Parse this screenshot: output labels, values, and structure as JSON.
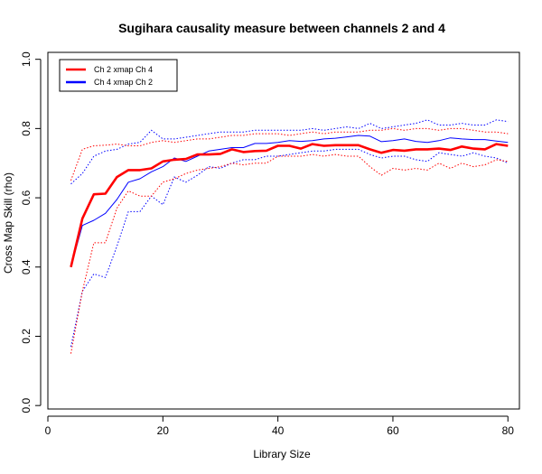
{
  "chart_data": {
    "type": "line",
    "title": "Sugihara causality measure between channels  2 and 4",
    "xlabel": "Library Size",
    "ylabel": "Cross Map Skill (rho)",
    "xlim": [
      0,
      82
    ],
    "ylim": [
      -0.01,
      1.02
    ],
    "xticks": [
      "0",
      "20",
      "40",
      "60",
      "80"
    ],
    "xtick_values": [
      0,
      20,
      40,
      60,
      80
    ],
    "yticks": [
      "0.0",
      "0.2",
      "0.4",
      "0.6",
      "0.8",
      "1.0"
    ],
    "ytick_values": [
      0,
      0.2,
      0.4,
      0.6,
      0.8,
      1.0
    ],
    "grid": false,
    "legend_position": "top-left",
    "x": [
      4,
      6,
      8,
      10,
      12,
      14,
      16,
      18,
      20,
      22,
      24,
      26,
      28,
      30,
      32,
      34,
      36,
      38,
      40,
      42,
      44,
      46,
      48,
      50,
      52,
      54,
      56,
      58,
      60,
      62,
      64,
      66,
      68,
      70,
      72,
      74,
      76,
      78,
      80
    ],
    "series": [
      {
        "name": "Ch 2 xmap Ch 4",
        "color": "#ff0000",
        "values": [
          0.4,
          0.54,
          0.61,
          0.612,
          0.66,
          0.68,
          0.68,
          0.685,
          0.705,
          0.71,
          0.712,
          0.725,
          0.725,
          0.727,
          0.74,
          0.732,
          0.735,
          0.736,
          0.75,
          0.75,
          0.742,
          0.755,
          0.75,
          0.752,
          0.752,
          0.752,
          0.74,
          0.73,
          0.738,
          0.736,
          0.74,
          0.74,
          0.742,
          0.738,
          0.748,
          0.742,
          0.74,
          0.755,
          0.75
        ],
        "upper": [
          0.65,
          0.74,
          0.75,
          0.752,
          0.755,
          0.75,
          0.75,
          0.76,
          0.765,
          0.76,
          0.765,
          0.77,
          0.77,
          0.775,
          0.78,
          0.78,
          0.785,
          0.785,
          0.785,
          0.78,
          0.785,
          0.79,
          0.785,
          0.79,
          0.79,
          0.79,
          0.795,
          0.795,
          0.8,
          0.795,
          0.8,
          0.8,
          0.795,
          0.8,
          0.8,
          0.795,
          0.79,
          0.79,
          0.785
        ],
        "lower": [
          0.15,
          0.33,
          0.47,
          0.47,
          0.57,
          0.62,
          0.605,
          0.605,
          0.645,
          0.655,
          0.67,
          0.68,
          0.685,
          0.69,
          0.7,
          0.695,
          0.7,
          0.7,
          0.72,
          0.72,
          0.72,
          0.725,
          0.72,
          0.725,
          0.72,
          0.72,
          0.69,
          0.665,
          0.685,
          0.68,
          0.685,
          0.68,
          0.7,
          0.685,
          0.7,
          0.69,
          0.695,
          0.71,
          0.705
        ]
      },
      {
        "name": "Ch 4  xmap Ch 2",
        "color": "#0000ff",
        "values": [
          0.4,
          0.52,
          0.535,
          0.555,
          0.595,
          0.645,
          0.655,
          0.675,
          0.69,
          0.715,
          0.705,
          0.72,
          0.735,
          0.74,
          0.745,
          0.745,
          0.757,
          0.757,
          0.76,
          0.765,
          0.763,
          0.765,
          0.77,
          0.772,
          0.776,
          0.78,
          0.778,
          0.762,
          0.765,
          0.77,
          0.763,
          0.76,
          0.765,
          0.773,
          0.77,
          0.768,
          0.768,
          0.764,
          0.76
        ],
        "upper": [
          0.64,
          0.67,
          0.72,
          0.735,
          0.74,
          0.755,
          0.76,
          0.795,
          0.77,
          0.77,
          0.775,
          0.78,
          0.785,
          0.79,
          0.79,
          0.79,
          0.795,
          0.795,
          0.795,
          0.795,
          0.795,
          0.8,
          0.795,
          0.8,
          0.805,
          0.8,
          0.815,
          0.8,
          0.805,
          0.81,
          0.815,
          0.825,
          0.81,
          0.81,
          0.815,
          0.81,
          0.81,
          0.825,
          0.82
        ],
        "lower": [
          0.17,
          0.33,
          0.38,
          0.37,
          0.46,
          0.56,
          0.56,
          0.605,
          0.58,
          0.66,
          0.645,
          0.665,
          0.69,
          0.685,
          0.7,
          0.71,
          0.71,
          0.72,
          0.72,
          0.725,
          0.73,
          0.735,
          0.735,
          0.74,
          0.74,
          0.74,
          0.725,
          0.715,
          0.72,
          0.72,
          0.71,
          0.705,
          0.73,
          0.725,
          0.72,
          0.73,
          0.72,
          0.715,
          0.7
        ]
      }
    ]
  }
}
